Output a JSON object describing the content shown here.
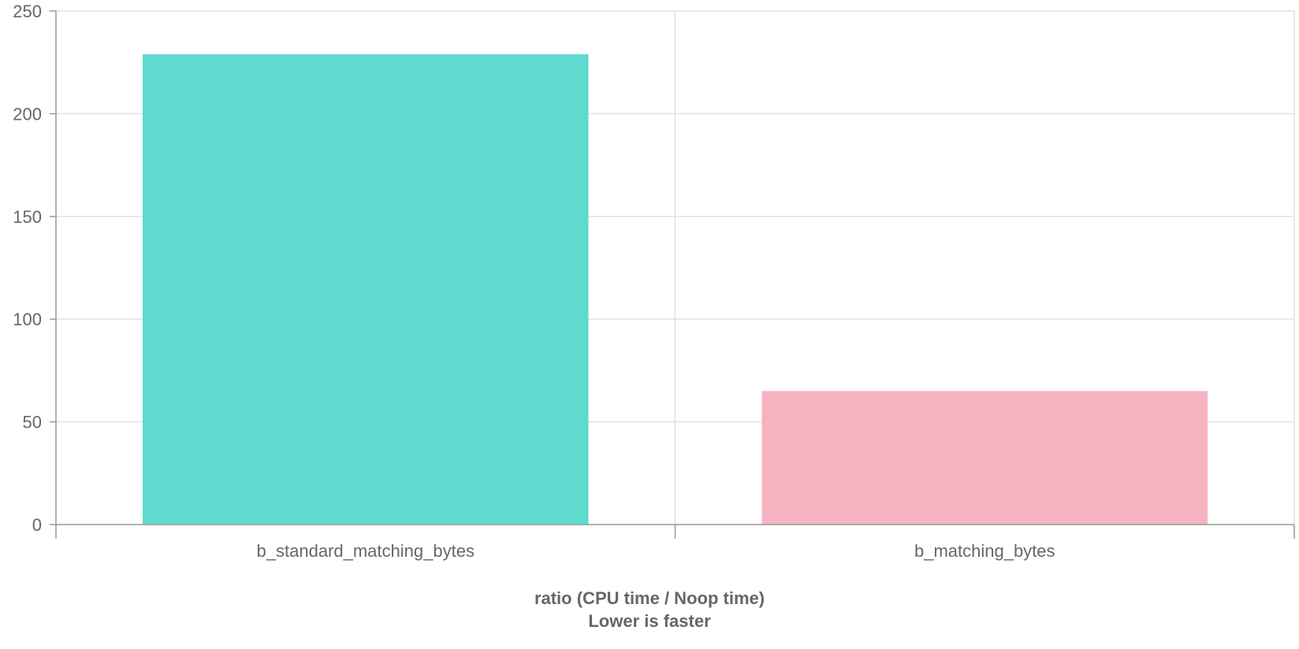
{
  "chart_data": {
    "type": "bar",
    "categories": [
      "b_standard_matching_bytes",
      "b_matching_bytes"
    ],
    "values": [
      229,
      65
    ],
    "colors": [
      "#5fdacf",
      "#f5b3c1"
    ],
    "ylim": [
      0,
      250
    ],
    "yticks": [
      0,
      50,
      100,
      150,
      200,
      250
    ],
    "xlabel": [
      "ratio (CPU time / Noop time)",
      "Lower is faster"
    ],
    "ylabel": "",
    "grid": true,
    "legend": "none"
  }
}
